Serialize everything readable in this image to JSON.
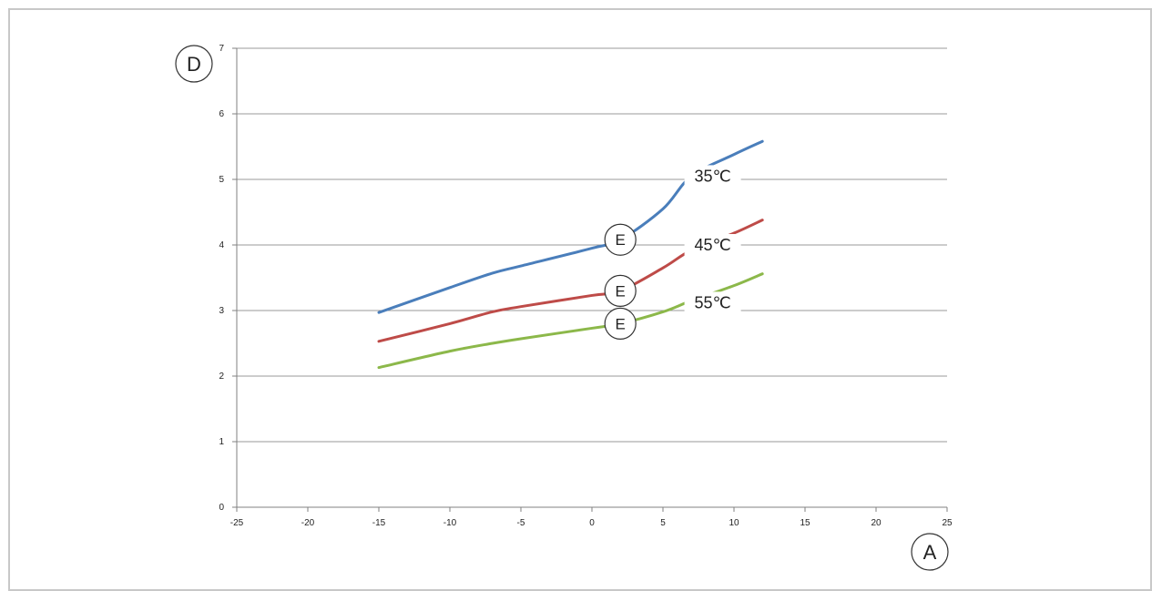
{
  "chart_data": {
    "type": "line",
    "title": "",
    "xlabel": "",
    "ylabel": "",
    "xlim": [
      -25,
      25
    ],
    "ylim": [
      0,
      7
    ],
    "x_ticks": [
      -25,
      -20,
      -15,
      -10,
      -5,
      0,
      5,
      10,
      15,
      20,
      25
    ],
    "y_ticks": [
      0,
      1,
      2,
      3,
      4,
      5,
      6,
      7
    ],
    "x_tick_labels": [
      "-25",
      "-20",
      "-15",
      "-10",
      "-5",
      "0",
      "5",
      "10",
      "15",
      "20",
      "25"
    ],
    "y_tick_labels": [
      "0",
      "1",
      "2",
      "3",
      "4",
      "5",
      "6",
      "7"
    ],
    "grid": "horizontal",
    "legend": "none",
    "x_axis_callout": "A",
    "y_axis_callout": "D",
    "series": [
      {
        "name": "35℃",
        "color": "#4a7ebb",
        "x": [
          -15,
          -10,
          -7,
          -5,
          0,
          2,
          5,
          7,
          10,
          12
        ],
        "y": [
          2.97,
          3.35,
          3.57,
          3.68,
          3.95,
          4.08,
          4.55,
          5.05,
          5.38,
          5.58
        ],
        "label_at": [
          8.5,
          5.05
        ],
        "callout": "E",
        "callout_at": [
          2,
          4.08
        ]
      },
      {
        "name": "45℃",
        "color": "#be4b48",
        "x": [
          -15,
          -10,
          -7,
          -5,
          0,
          2,
          5,
          7,
          10,
          12
        ],
        "y": [
          2.53,
          2.8,
          2.98,
          3.06,
          3.23,
          3.3,
          3.65,
          3.92,
          4.18,
          4.38
        ],
        "label_at": [
          8.5,
          4.0
        ],
        "callout": "E",
        "callout_at": [
          2,
          3.3
        ]
      },
      {
        "name": "55℃",
        "color": "#8cb84a",
        "x": [
          -15,
          -10,
          -7,
          -5,
          0,
          2,
          5,
          7,
          10,
          12
        ],
        "y": [
          2.13,
          2.38,
          2.5,
          2.57,
          2.73,
          2.8,
          2.98,
          3.15,
          3.38,
          3.56
        ],
        "label_at": [
          8.5,
          3.12
        ],
        "callout": "E",
        "callout_at": [
          2,
          2.8
        ]
      }
    ]
  }
}
